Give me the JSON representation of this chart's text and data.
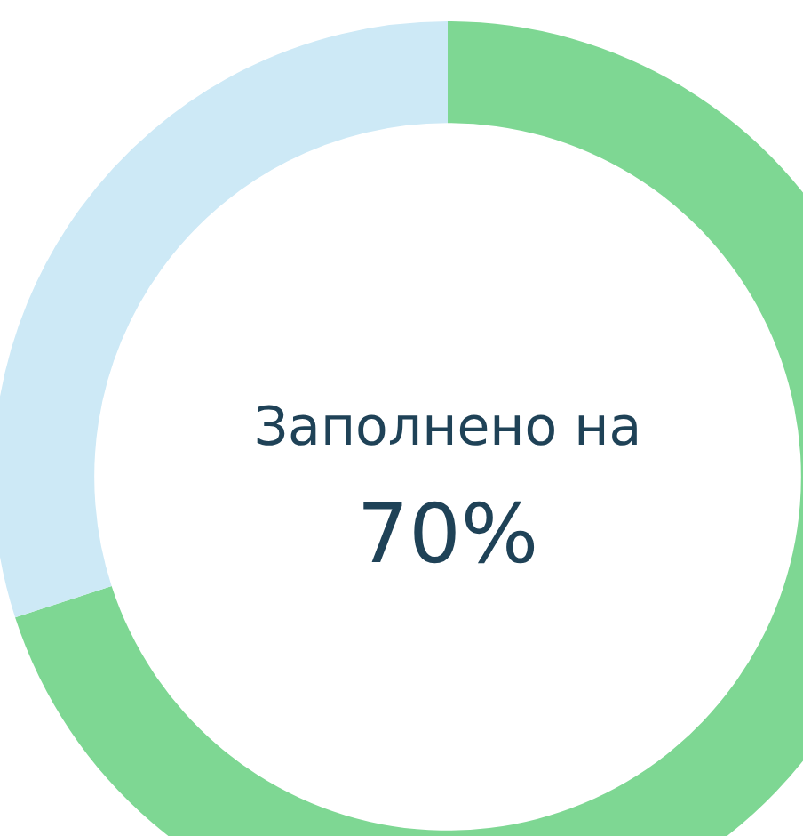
{
  "chart_data": {
    "type": "donut",
    "categories": [
      null,
      null
    ],
    "values": [
      70,
      30
    ],
    "colors": [
      "#7ed793",
      "#cde9f6"
    ],
    "annotations": [
      "Заполнено на",
      "70%"
    ],
    "legend": false
  }
}
